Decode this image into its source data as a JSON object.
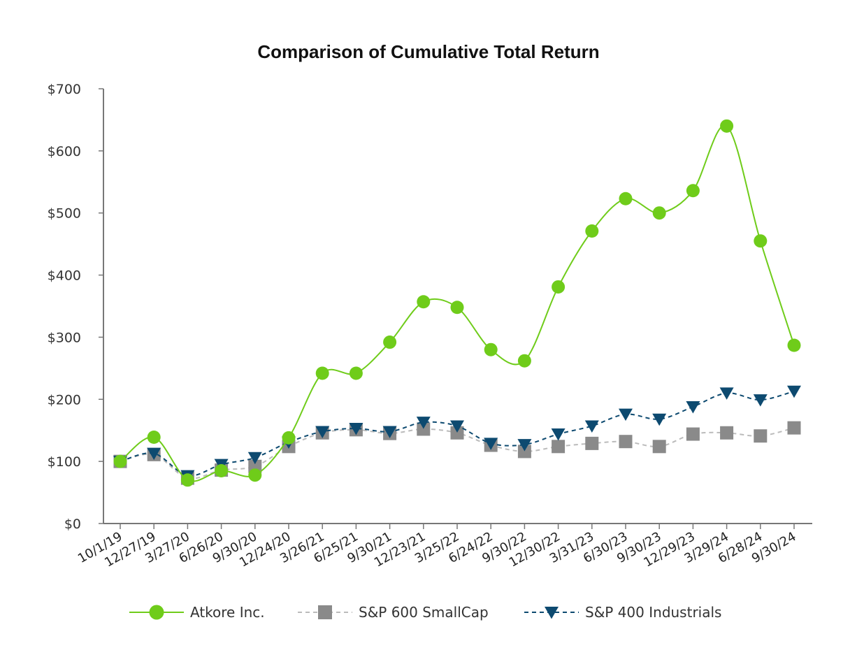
{
  "chart_data": {
    "type": "line",
    "title": "Comparison of Cumulative Total Return",
    "xlabel": "",
    "ylabel": "",
    "ylim": [
      0,
      700
    ],
    "yticks": [
      0,
      100,
      200,
      300,
      400,
      500,
      600,
      700
    ],
    "ytick_labels": [
      "$0",
      "$100",
      "$200",
      "$300",
      "$400",
      "$500",
      "$600",
      "$700"
    ],
    "categories": [
      "10/1/19",
      "12/27/19",
      "3/27/20",
      "6/26/20",
      "9/30/20",
      "12/24/20",
      "3/26/21",
      "6/25/21",
      "9/30/21",
      "12/23/21",
      "3/25/22",
      "6/24/22",
      "9/30/22",
      "12/30/22",
      "3/31/23",
      "6/30/23",
      "9/30/23",
      "12/29/23",
      "3/29/24",
      "6/28/24",
      "9/30/24"
    ],
    "legend_position": "bottom",
    "series": [
      {
        "name": "Atkore Inc.",
        "color": "#6fcc1a",
        "marker": "circle",
        "line_style": "solid",
        "values": [
          100,
          139,
          70,
          85,
          78,
          138,
          242,
          242,
          292,
          357,
          348,
          280,
          262,
          381,
          471,
          523,
          500,
          536,
          640,
          455,
          287
        ]
      },
      {
        "name": "S&P 600 SmallCap",
        "color": "#8a8a8a",
        "line_color": "#bbbbbb",
        "marker": "square",
        "line_style": "dashed",
        "values": [
          100,
          111,
          73,
          86,
          92,
          124,
          146,
          151,
          145,
          152,
          146,
          126,
          116,
          124,
          129,
          132,
          124,
          144,
          146,
          141,
          154
        ]
      },
      {
        "name": "S&P 400 Industrials",
        "color": "#0d4a70",
        "marker": "triangle-down",
        "line_style": "dashed",
        "values": [
          100,
          113,
          77,
          95,
          106,
          131,
          148,
          153,
          148,
          163,
          157,
          129,
          127,
          144,
          157,
          176,
          168,
          188,
          210,
          199,
          213
        ]
      }
    ]
  }
}
